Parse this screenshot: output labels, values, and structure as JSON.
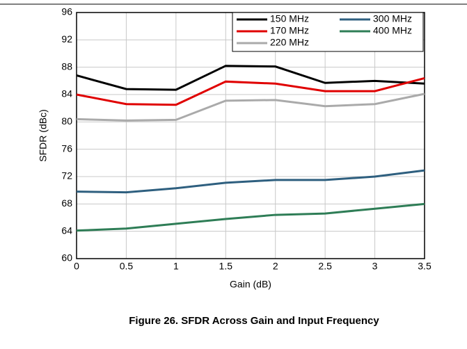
{
  "chart_data": {
    "type": "line",
    "x_label": "Gain (dB)",
    "y_label": "SFDR (dBc)",
    "x": [
      0,
      0.5,
      1,
      1.5,
      2,
      2.5,
      3,
      3.5
    ],
    "xlim": [
      0,
      3.5
    ],
    "xticks": [
      0,
      0.5,
      1,
      1.5,
      2,
      2.5,
      3,
      3.5
    ],
    "ylim": [
      60,
      96
    ],
    "yticks": [
      60,
      64,
      68,
      72,
      76,
      80,
      84,
      88,
      92,
      96
    ],
    "grid": true,
    "legend": "upper right",
    "series": [
      {
        "name": "150 MHz",
        "color": "#000000",
        "values": [
          86.8,
          84.8,
          84.7,
          88.2,
          88.1,
          85.7,
          86.0,
          85.6
        ]
      },
      {
        "name": "170 MHz",
        "color": "#e00000",
        "values": [
          84.0,
          82.6,
          82.5,
          85.9,
          85.6,
          84.5,
          84.5,
          86.4
        ]
      },
      {
        "name": "220 MHz",
        "color": "#aaaaaa",
        "values": [
          80.4,
          80.2,
          80.3,
          83.1,
          83.2,
          82.3,
          82.6,
          84.1
        ]
      },
      {
        "name": "300 MHz",
        "color": "#2e5f7f",
        "values": [
          69.8,
          69.7,
          70.3,
          71.1,
          71.5,
          71.5,
          72.0,
          72.9
        ]
      },
      {
        "name": "400 MHz",
        "color": "#2e7d56",
        "values": [
          64.1,
          64.4,
          65.1,
          65.8,
          66.4,
          66.6,
          67.3,
          68.0
        ]
      }
    ]
  },
  "caption": "Figure 26. SFDR Across Gain and Input Frequency"
}
